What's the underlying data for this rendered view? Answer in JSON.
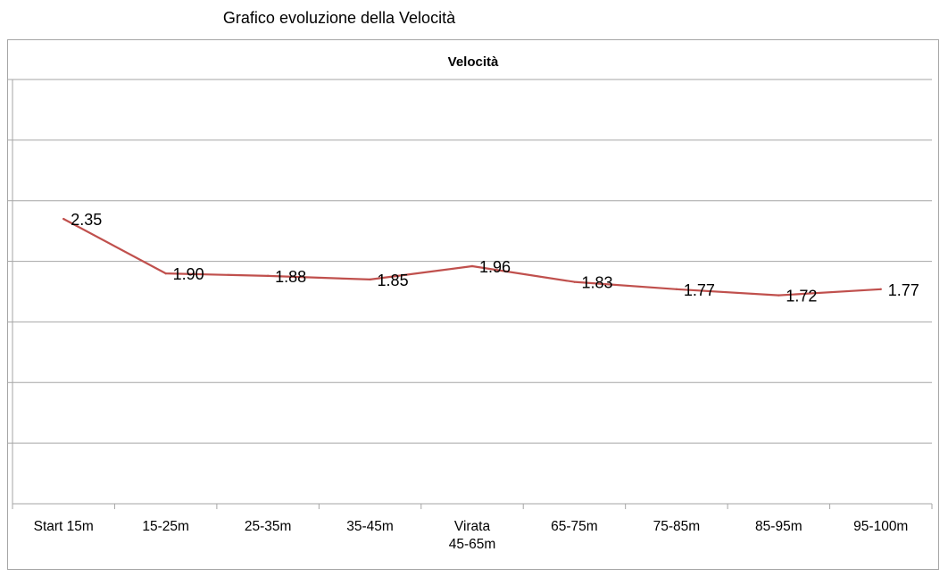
{
  "page": {
    "heading": "Grafico evoluzione della Velocità"
  },
  "chart_data": {
    "type": "line",
    "title": "Velocità",
    "xlabel": "",
    "ylabel": "",
    "categories": [
      "Start 15m",
      "15-25m",
      "25-35m",
      "35-45m",
      "Virata\n45-65m",
      "65-75m",
      "75-85m",
      "85-95m",
      "95-100m"
    ],
    "series": [
      {
        "values": [
          2.35,
          1.9,
          1.88,
          1.85,
          1.96,
          1.83,
          1.77,
          1.72,
          1.77
        ],
        "color": "#c0504d"
      }
    ],
    "data_labels": [
      "2.35",
      "1.90",
      "1.88",
      "1.85",
      "1.96",
      "1.83",
      "1.77",
      "1.72",
      "1.77"
    ],
    "ylim": [
      0,
      3.5
    ],
    "y_tick_step": 0.5,
    "y_tick_labels_shown": false,
    "grid": true,
    "legend": "none"
  }
}
